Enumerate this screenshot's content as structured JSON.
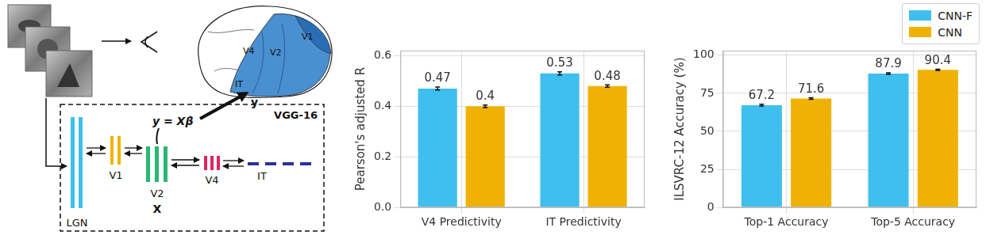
{
  "diagram": {
    "brain_areas": [
      "V4",
      "V2",
      "V1",
      "IT"
    ],
    "response": "y",
    "model": {
      "title": "VGG-16",
      "layers": [
        "LGN",
        "V1",
        "V2",
        "V4",
        "IT"
      ],
      "features": "X",
      "equation": "y = Xβ"
    }
  },
  "chart_data": [
    {
      "type": "bar",
      "y_label": "Pearson's adjusted R",
      "categories": [
        "V4 Predictivity",
        "IT Predictivity"
      ],
      "series": [
        {
          "name": "CNN-F",
          "color": "#3fbfee",
          "values": [
            0.47,
            0.53
          ],
          "errors": [
            0.006,
            0.006
          ]
        },
        {
          "name": "CNN",
          "color": "#f0b202",
          "values": [
            0.4,
            0.48
          ],
          "errors": [
            0.005,
            0.005
          ]
        }
      ],
      "ylim": [
        0,
        0.62
      ],
      "yticks": [
        {
          "value": 0,
          "label": "0.0"
        },
        {
          "value": 0.2,
          "label": "0.2"
        },
        {
          "value": 0.4,
          "label": "0.4"
        },
        {
          "value": 0.6,
          "label": "0.6"
        }
      ],
      "grid": true,
      "data_labels": true
    },
    {
      "type": "bar",
      "y_label": "ILSVRC-12 Accuracy (%)",
      "categories": [
        "Top-1 Accuracy",
        "Top-5 Accuracy"
      ],
      "series": [
        {
          "name": "CNN-F",
          "color": "#3fbfee",
          "values": [
            67.2,
            87.9
          ],
          "errors": [
            0.6,
            0.5
          ]
        },
        {
          "name": "CNN",
          "color": "#f0b202",
          "values": [
            71.6,
            90.4
          ],
          "errors": [
            0.5,
            0.4
          ]
        }
      ],
      "ylim": [
        0,
        103
      ],
      "yticks": [
        0,
        25,
        50,
        75,
        100
      ],
      "grid": true,
      "data_labels": true,
      "legend": "upper right"
    }
  ]
}
